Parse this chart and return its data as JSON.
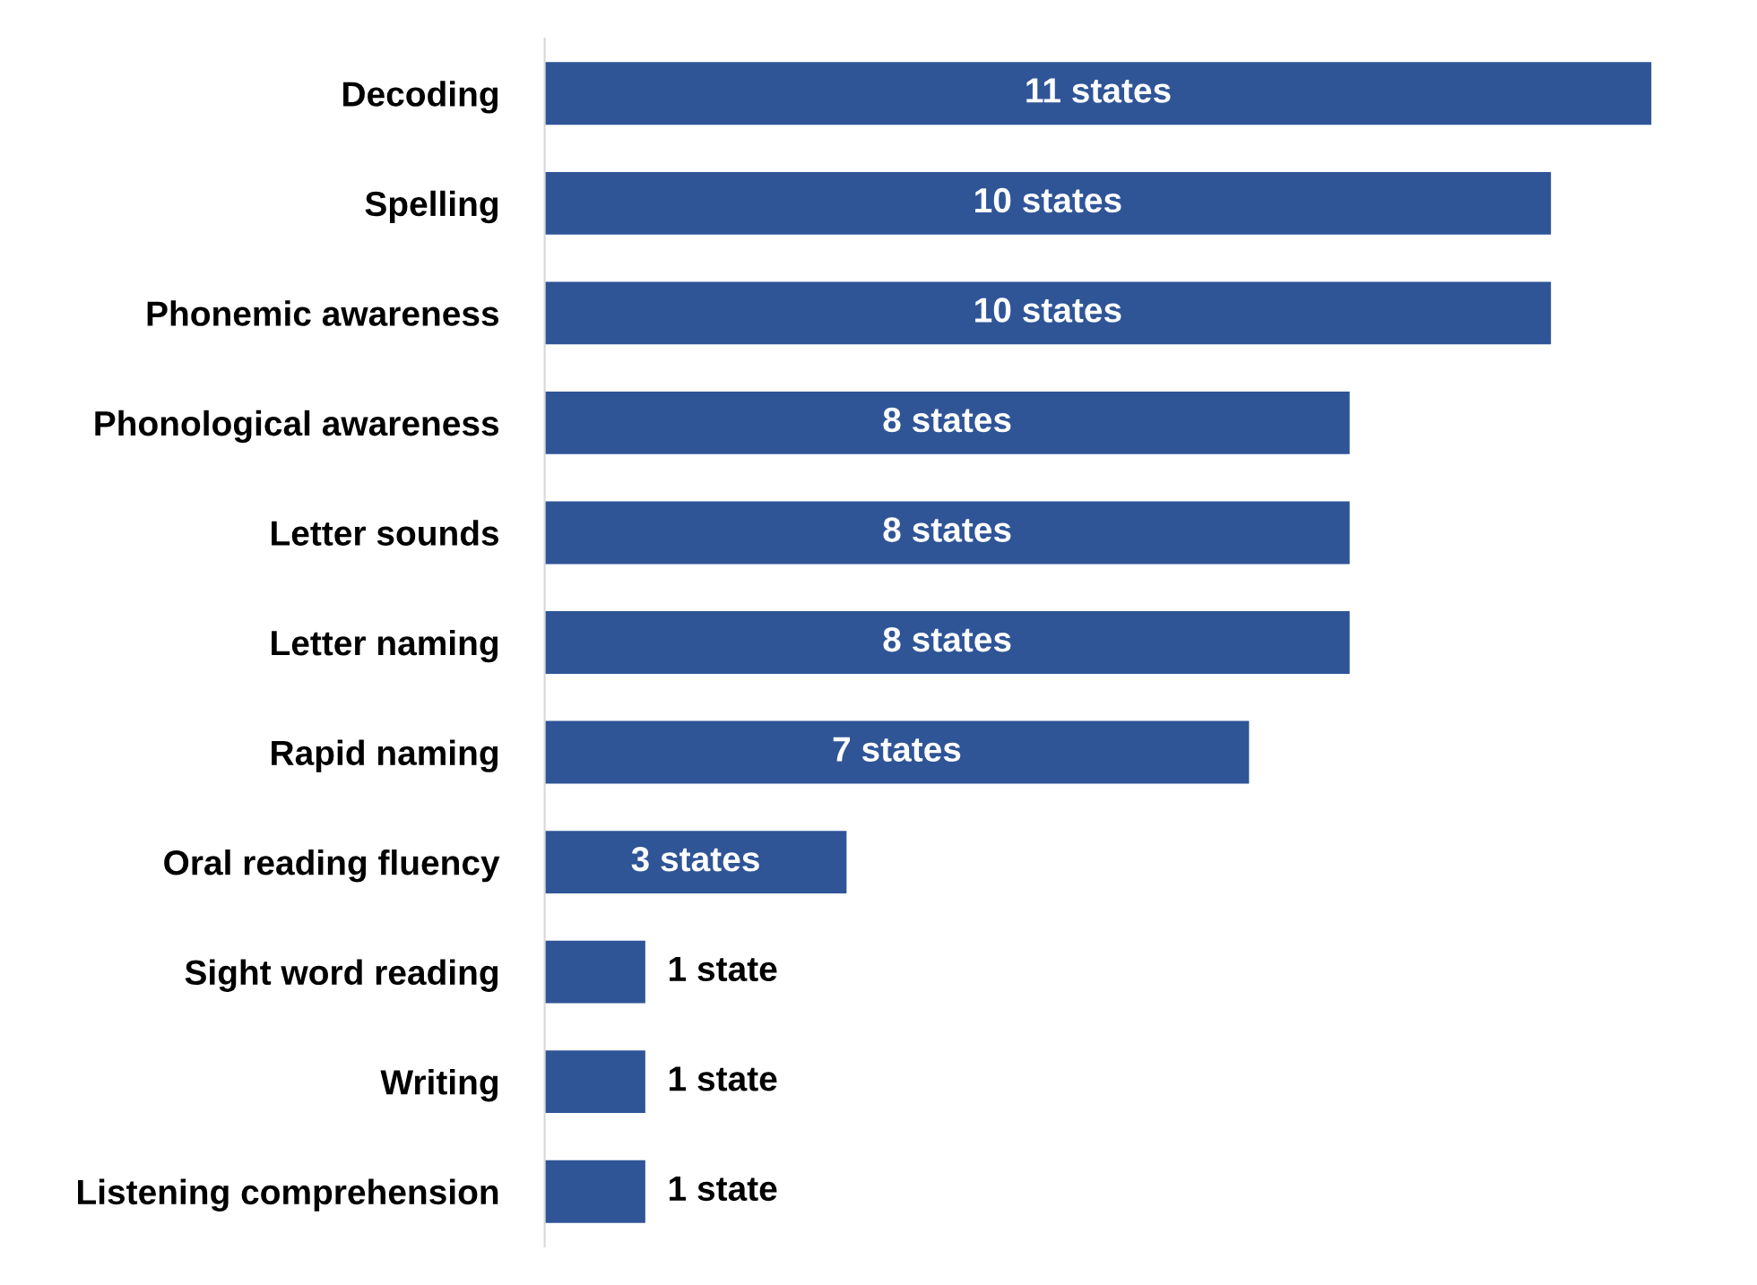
{
  "chart_data": {
    "type": "bar",
    "orientation": "horizontal",
    "categories": [
      "Decoding",
      "Spelling",
      "Phonemic awareness",
      "Phonological awareness",
      "Letter sounds",
      "Letter naming",
      "Rapid naming",
      "Oral reading fluency",
      "Sight word reading",
      "Writing",
      "Listening comprehension"
    ],
    "values": [
      11,
      10,
      10,
      8,
      8,
      8,
      7,
      3,
      1,
      1,
      1
    ],
    "value_labels": [
      "11 states",
      "10 states",
      "10 states",
      "8 states",
      "8 states",
      "8 states",
      "7 states",
      "3 states",
      "1 state",
      "1 state",
      "1 state"
    ],
    "color": "#2f5597",
    "xlim": [
      0,
      11
    ],
    "tick_labels": "y",
    "grid": false,
    "legend": false
  }
}
